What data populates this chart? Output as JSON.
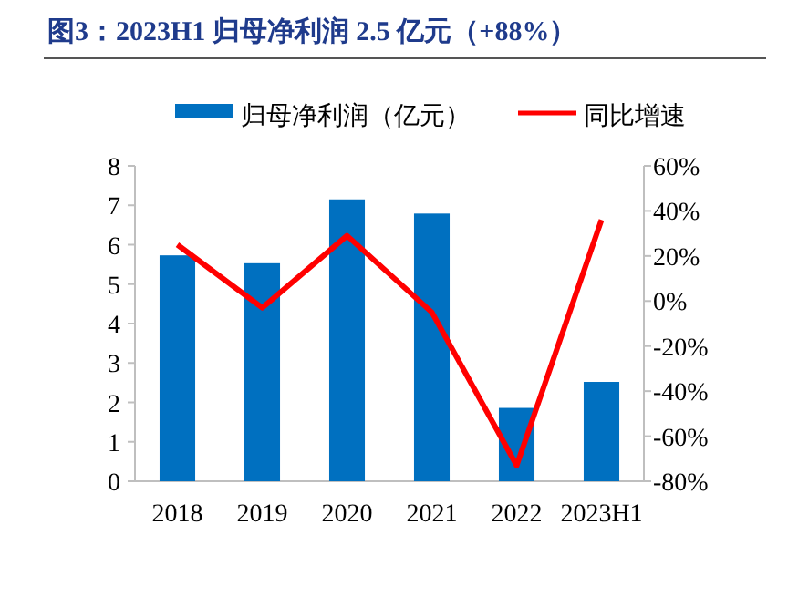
{
  "chart_data": {
    "type": "bar",
    "title": "图3：2023H1 归母净利润 2.5 亿元（+88%）",
    "categories": [
      "2018",
      "2019",
      "2020",
      "2021",
      "2022",
      "2023H1"
    ],
    "series": [
      {
        "name": "归母净利润（亿元）",
        "color": "#0070c0",
        "values": [
          5.73,
          5.53,
          7.15,
          6.79,
          1.86,
          2.52
        ]
      },
      {
        "name": "同比增速",
        "type": "line",
        "axis": "y2",
        "color": "#ff0000",
        "values": [
          25,
          -3,
          29,
          -5,
          -73,
          36
        ]
      }
    ],
    "ylim": [
      0,
      8
    ],
    "yticks": [
      0,
      1,
      2,
      3,
      4,
      5,
      6,
      7,
      8
    ],
    "y2lim": [
      -80,
      60
    ],
    "y2ticks": [
      {
        "value": -80,
        "label": "-80%"
      },
      {
        "value": -60,
        "label": "-60%"
      },
      {
        "value": -40,
        "label": "-40%"
      },
      {
        "value": -20,
        "label": "-20%"
      },
      {
        "value": 0,
        "label": "0%"
      },
      {
        "value": 20,
        "label": "20%"
      },
      {
        "value": 40,
        "label": "40%"
      },
      {
        "value": 60,
        "label": "60%"
      }
    ],
    "legend": "top",
    "grid": false,
    "marker": "none",
    "line_style": "solid"
  }
}
